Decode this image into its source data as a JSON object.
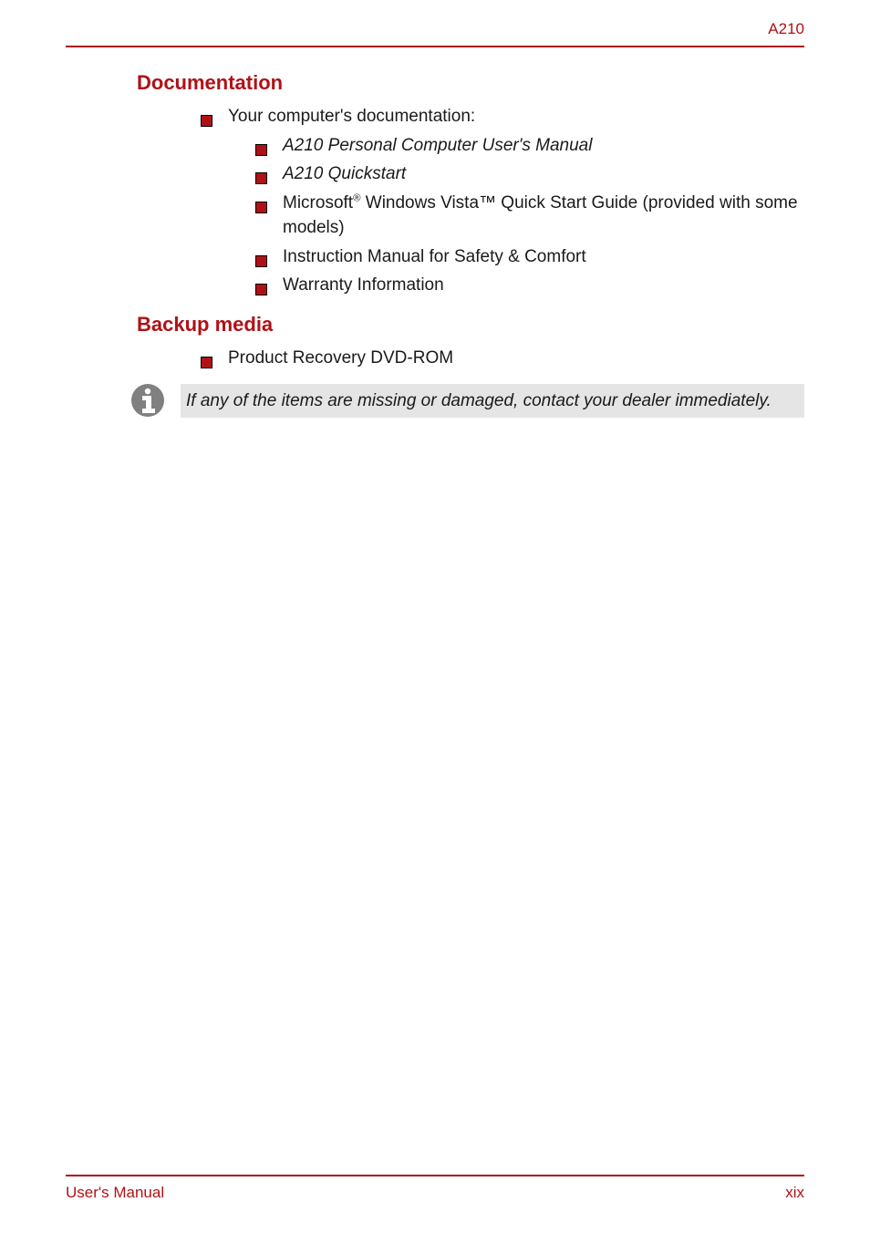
{
  "colors": {
    "brand": "#b01116",
    "text": "#1a1a1a",
    "black": "#000000",
    "noteBg": "#e5e5e5",
    "iconGray": "#808080",
    "rule": "#b01116"
  },
  "header": {
    "label": "A210"
  },
  "sections": {
    "documentation": {
      "heading": "Documentation",
      "intro": "Your computer's documentation:",
      "items": [
        {
          "text": "A210 Personal Computer User's Manual",
          "italic": true
        },
        {
          "text": "A210 Quickstart",
          "italic": true
        },
        {
          "html": "Microsoft<sup>®</sup> Windows Vista™ Quick Start Guide (provided with some models)",
          "italic": false
        },
        {
          "text": "Instruction Manual for Safety & Comfort",
          "italic": false
        },
        {
          "text": "Warranty Information",
          "italic": false
        }
      ]
    },
    "backup": {
      "heading": "Backup media",
      "items": [
        {
          "text": "Product Recovery DVD-ROM",
          "italic": false
        }
      ]
    }
  },
  "note": {
    "text": "If any of the items are missing or damaged, contact your dealer immediately."
  },
  "footer": {
    "left": "User's Manual",
    "right": "xix"
  },
  "style": {
    "bulletSize": 13,
    "headingFontSize": 22,
    "bodyFontSize": 19,
    "footerFontSize": 17
  }
}
